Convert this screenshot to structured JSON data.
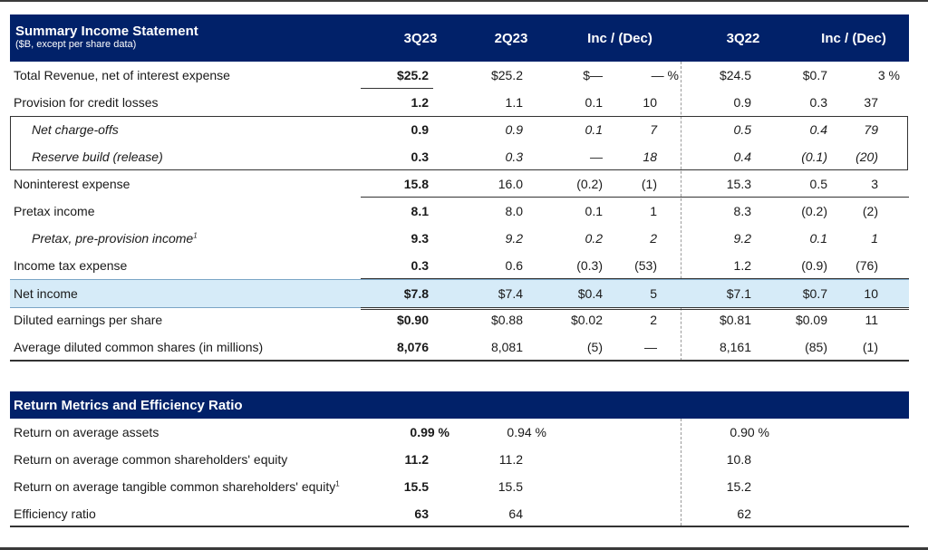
{
  "summary": {
    "title": "Summary Income Statement",
    "subtitle": "($B, except per share data)",
    "columns": [
      "3Q23",
      "2Q23",
      "Inc / (Dec)",
      "3Q22",
      "Inc / (Dec)"
    ],
    "rows": [
      {
        "label": "Total Revenue, net of interest expense",
        "v": [
          "$25.2",
          "$25.2",
          "$—",
          "— %",
          "$24.5",
          "$0.7",
          "3 %"
        ]
      },
      {
        "label": "Provision for credit losses",
        "v": [
          "1.2",
          "1.1",
          "0.1",
          "10",
          "0.9",
          "0.3",
          "37"
        ]
      },
      {
        "label": "Net charge-offs",
        "v": [
          "0.9",
          "0.9",
          "0.1",
          "7",
          "0.5",
          "0.4",
          "79"
        ]
      },
      {
        "label": "Reserve build (release)",
        "v": [
          "0.3",
          "0.3",
          "—",
          "18",
          "0.4",
          "(0.1)",
          "(20)"
        ]
      },
      {
        "label": "Noninterest expense",
        "v": [
          "15.8",
          "16.0",
          "(0.2)",
          "(1)",
          "15.3",
          "0.5",
          "3"
        ]
      },
      {
        "label": "Pretax income",
        "v": [
          "8.1",
          "8.0",
          "0.1",
          "1",
          "8.3",
          "(0.2)",
          "(2)"
        ]
      },
      {
        "label": "Pretax, pre-provision income",
        "footnote": "1",
        "v": [
          "9.3",
          "9.2",
          "0.2",
          "2",
          "9.2",
          "0.1",
          "1"
        ]
      },
      {
        "label": "Income tax expense",
        "v": [
          "0.3",
          "0.6",
          "(0.3)",
          "(53)",
          "1.2",
          "(0.9)",
          "(76)"
        ]
      },
      {
        "label": "Net income",
        "v": [
          "$7.8",
          "$7.4",
          "$0.4",
          "5",
          "$7.1",
          "$0.7",
          "10"
        ]
      },
      {
        "label": "Diluted earnings per share",
        "v": [
          "$0.90",
          "$0.88",
          "$0.02",
          "2",
          "$0.81",
          "$0.09",
          "11"
        ]
      },
      {
        "label": "Average diluted common shares (in millions)",
        "v": [
          "8,076",
          "8,081",
          "(5)",
          "—",
          "8,161",
          "(85)",
          "(1)"
        ]
      }
    ]
  },
  "returns": {
    "title": "Return Metrics and Efficiency Ratio",
    "rows": [
      {
        "label": "Return on average assets",
        "v": [
          "0.99 %",
          "0.94 %",
          "0.90 %"
        ]
      },
      {
        "label": "Return on average common shareholders' equity",
        "v": [
          "11.2",
          "11.2",
          "10.8"
        ]
      },
      {
        "label": "Return on average tangible common shareholders' equity",
        "footnote": "1",
        "v": [
          "15.5",
          "15.5",
          "15.2"
        ]
      },
      {
        "label": "Efficiency ratio",
        "v": [
          "63",
          "64",
          "62"
        ]
      }
    ]
  }
}
